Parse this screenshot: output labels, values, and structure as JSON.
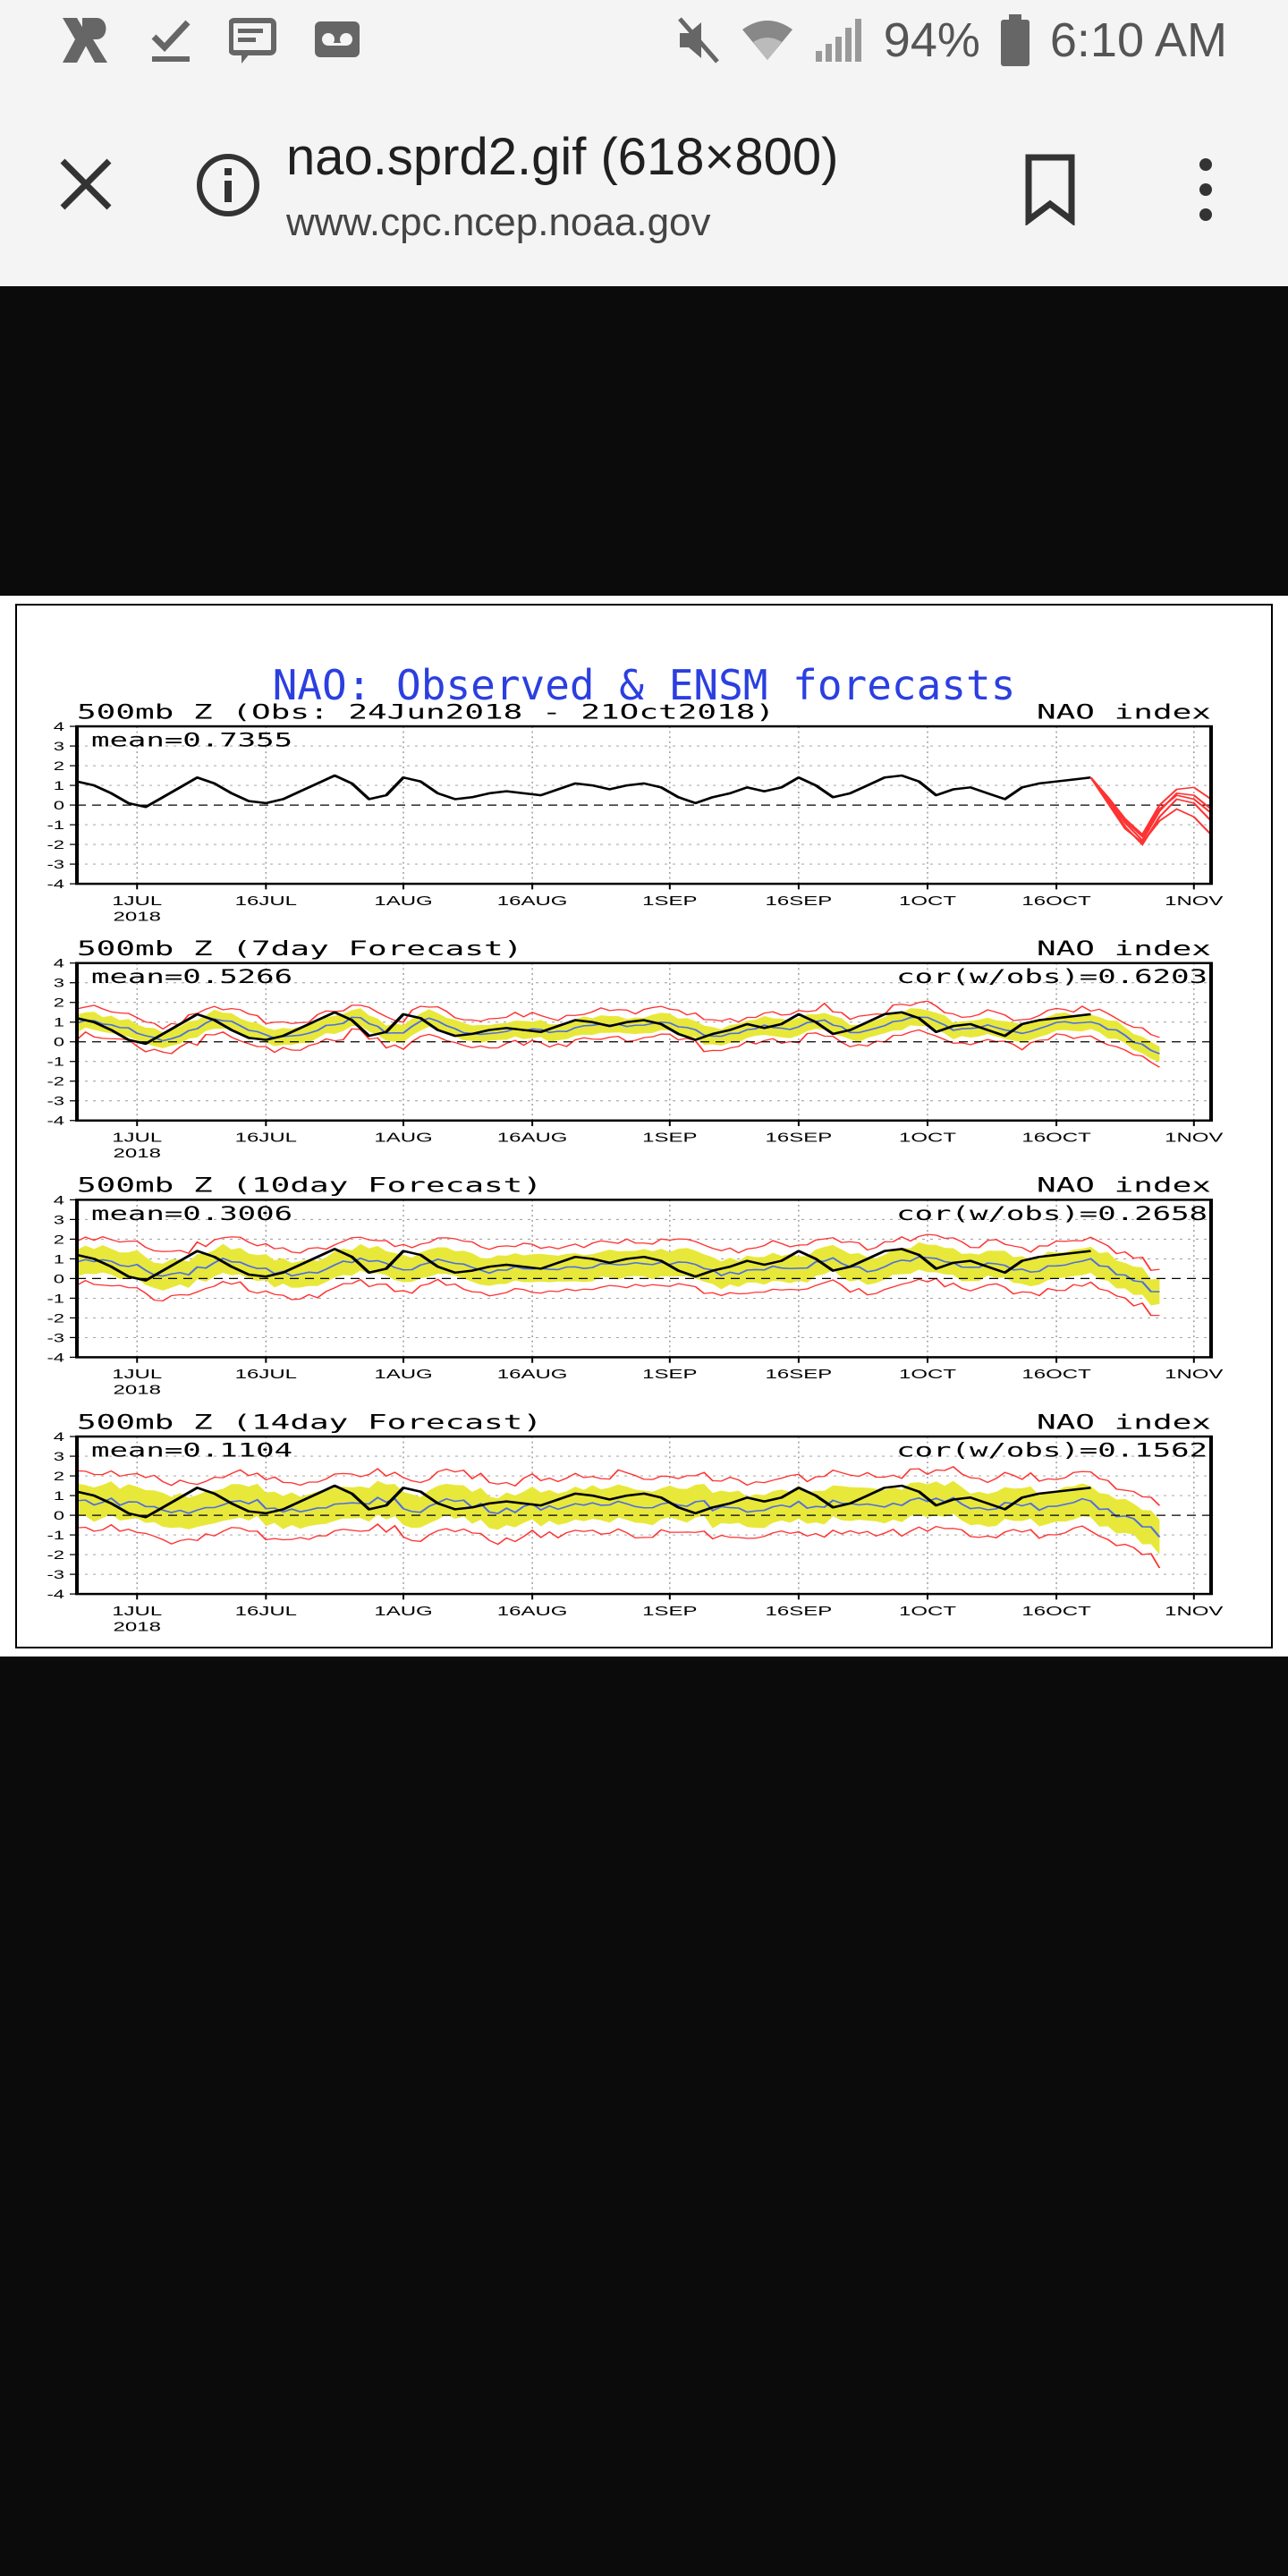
{
  "status_bar": {
    "battery": "94%",
    "time": "6:10 AM",
    "icons": [
      "app-r-icon",
      "check-download-icon",
      "playlist-icon",
      "voicemail-icon",
      "mute-icon",
      "wifi-icon",
      "signal-icon",
      "battery-icon"
    ]
  },
  "browser": {
    "title": "nao.sprd2.gif (618×800)",
    "url": "www.cpc.ncep.noaa.gov",
    "icons": [
      "close-icon",
      "info-icon",
      "bookmark-icon",
      "more-vert-icon"
    ]
  },
  "colors": {
    "observed": "#000000",
    "member": "#ff3333",
    "mean": "#4d6fe0",
    "spread": "#e8e83a",
    "title": "#2b3fe0"
  },
  "chart_data": {
    "type": "line",
    "title": "NAO: Observed & ENSM forecasts",
    "x_ticks": [
      {
        "label": "1JUL",
        "sub": "2018",
        "day": 7
      },
      {
        "label": "16JUL",
        "day": 22
      },
      {
        "label": "1AUG",
        "day": 38
      },
      {
        "label": "16AUG",
        "day": 53
      },
      {
        "label": "1SEP",
        "day": 69
      },
      {
        "label": "16SEP",
        "day": 84
      },
      {
        "label": "1OCT",
        "day": 99
      },
      {
        "label": "16OCT",
        "day": 114
      },
      {
        "label": "1NOV",
        "day": 130
      }
    ],
    "xlim": [
      0,
      132
    ],
    "ylim": [
      -4,
      4
    ],
    "y_ticks": [
      4,
      3,
      2,
      1,
      0,
      -1,
      -2,
      -3,
      -4
    ],
    "observed": {
      "days": [
        0,
        2,
        4,
        6,
        8,
        10,
        12,
        14,
        16,
        18,
        20,
        22,
        24,
        26,
        28,
        30,
        32,
        34,
        36,
        38,
        40,
        42,
        44,
        46,
        48,
        50,
        52,
        54,
        56,
        58,
        60,
        62,
        64,
        66,
        68,
        70,
        72,
        74,
        76,
        78,
        80,
        82,
        84,
        86,
        88,
        90,
        92,
        94,
        96,
        98,
        100,
        102,
        104,
        106,
        108,
        110,
        112,
        114,
        116,
        118
      ],
      "values": [
        1.2,
        1.0,
        0.6,
        0.1,
        -0.1,
        0.4,
        0.9,
        1.4,
        1.1,
        0.6,
        0.2,
        0.1,
        0.3,
        0.7,
        1.1,
        1.5,
        1.1,
        0.3,
        0.5,
        1.4,
        1.2,
        0.6,
        0.3,
        0.4,
        0.6,
        0.7,
        0.6,
        0.5,
        0.8,
        1.1,
        1.0,
        0.8,
        1.0,
        1.1,
        0.9,
        0.4,
        0.1,
        0.4,
        0.6,
        0.9,
        0.7,
        0.9,
        1.4,
        1.0,
        0.4,
        0.6,
        1.0,
        1.4,
        1.5,
        1.2,
        0.5,
        0.8,
        0.9,
        0.6,
        0.3,
        0.9,
        1.1,
        1.2,
        1.3,
        1.4
      ]
    },
    "ensemble_forecast": {
      "members": [
        {
          "days": [
            118,
            120,
            122,
            124,
            126,
            128,
            130,
            132
          ],
          "values": [
            1.4,
            0.3,
            -0.9,
            -1.8,
            -0.3,
            0.6,
            0.5,
            -0.2
          ]
        },
        {
          "days": [
            118,
            120,
            122,
            124,
            126,
            128,
            130,
            132
          ],
          "values": [
            1.4,
            0.2,
            -1.1,
            -2.0,
            -0.6,
            0.3,
            0.1,
            -0.8
          ]
        },
        {
          "days": [
            118,
            120,
            122,
            124,
            126,
            128,
            130,
            132
          ],
          "values": [
            1.4,
            0.4,
            -0.7,
            -1.5,
            0.0,
            0.8,
            0.9,
            0.3
          ]
        },
        {
          "days": [
            118,
            120,
            122,
            124,
            126,
            128,
            130,
            132
          ],
          "values": [
            1.4,
            0.1,
            -1.2,
            -1.9,
            -0.8,
            -0.2,
            -0.6,
            -1.5
          ]
        },
        {
          "days": [
            118,
            120,
            122,
            124,
            126,
            128,
            130,
            132
          ],
          "values": [
            1.4,
            0.3,
            -0.8,
            -1.6,
            -0.2,
            0.5,
            0.3,
            -0.4
          ]
        }
      ]
    },
    "panels": [
      {
        "label": "500mb Z (Obs: 24Jun2018 - 21Oct2018)",
        "index_label": "NAO index",
        "mean": "mean=0.7355",
        "cor": ""
      },
      {
        "label": "500mb Z (7day Forecast)",
        "index_label": "NAO index",
        "mean": "mean=0.5266",
        "cor": "cor(w/obs)=0.6203",
        "lead": 7,
        "spread_halfwidth": 0.35,
        "member_halfwidth": 0.55
      },
      {
        "label": "500mb Z (10day Forecast)",
        "index_label": "NAO index",
        "mean": "mean=0.3006",
        "cor": "cor(w/obs)=0.2658",
        "lead": 10,
        "spread_halfwidth": 0.6,
        "member_halfwidth": 1.0
      },
      {
        "label": "500mb Z (14day Forecast)",
        "index_label": "NAO index",
        "mean": "mean=0.1104",
        "cor": "cor(w/obs)=0.1562",
        "lead": 14,
        "spread_halfwidth": 0.75,
        "member_halfwidth": 1.3
      }
    ]
  }
}
